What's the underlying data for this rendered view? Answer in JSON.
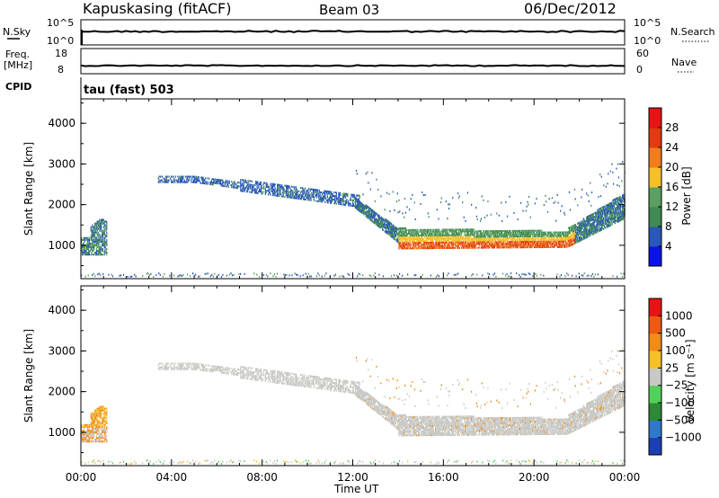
{
  "header": {
    "station": "Kapuskasing (fitACF)",
    "beam": "Beam 03",
    "date": "06/Dec/2012"
  },
  "noise_panel": {
    "left_label": "N.Sky",
    "left_ticks": [
      "10^5",
      "10^0"
    ],
    "right_label": "N.Search",
    "right_ticks": [
      "10^5",
      "10^0"
    ]
  },
  "freq_panel": {
    "left_label_line1": "Freq.",
    "left_label_line2": "[MHz]",
    "left_ticks": [
      "18",
      "8"
    ],
    "right_label": "Nave",
    "right_ticks": [
      "60",
      "0"
    ]
  },
  "cpid": {
    "label": "CPID",
    "text": "tau (fast) 503"
  },
  "colors": {
    "power_scale": [
      "#0a14e6",
      "#2a58b8",
      "#3f8a52",
      "#5aa060",
      "#f5c02a",
      "#f07d1e",
      "#e23b12",
      "#e61414"
    ],
    "velocity_scale": [
      "#1c3fb4",
      "#2f79c8",
      "#2d8a34",
      "#52d05a",
      "#c8c8c4",
      "#f5c02a",
      "#f08c18",
      "#ee5a14",
      "#e61414"
    ],
    "ground_scatter": "#c8c8c4"
  },
  "chart_data": [
    {
      "type": "heatmap",
      "panel": "power",
      "xlabel": "Time UT",
      "ylabel": "Slant Range [km]",
      "colorbar_label": "Power [dB]",
      "colorbar_ticks": [
        "28",
        "24",
        "20",
        "16",
        "12",
        "8",
        "4"
      ],
      "colorbar_range": [
        0,
        32
      ],
      "x_ticks": [
        "00:00",
        "04:00",
        "08:00",
        "12:00",
        "16:00",
        "20:00",
        "00:00"
      ],
      "xlim_hours": [
        0,
        24
      ],
      "y_ticks": [
        "4000",
        "3000",
        "2000",
        "1000"
      ],
      "ylim_km": [
        180,
        4600
      ],
      "grid": false
    },
    {
      "type": "heatmap",
      "panel": "velocity",
      "xlabel": "Time UT",
      "ylabel": "Slant Range [km]",
      "colorbar_label": "Velocity [m s⁻¹]",
      "colorbar_ticks": [
        "1000",
        "500",
        "100",
        "25",
        "−25",
        "−100",
        "−500",
        "−1000"
      ],
      "x_ticks": [
        "00:00",
        "04:00",
        "08:00",
        "12:00",
        "16:00",
        "20:00",
        "00:00"
      ],
      "xlim_hours": [
        0,
        24
      ],
      "y_ticks": [
        "4000",
        "3000",
        "2000",
        "1000"
      ],
      "ylim_km": [
        180,
        4600
      ],
      "grid": false
    }
  ]
}
